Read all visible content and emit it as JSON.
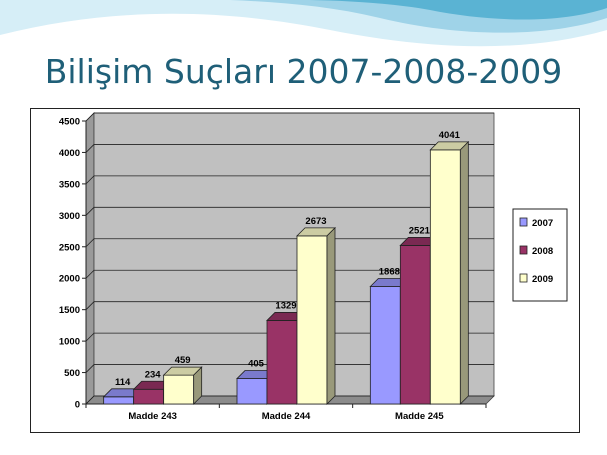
{
  "slide": {
    "title": "Bilişim Suçları 2007-2008-2009"
  },
  "colors": {
    "title": "#1f5f78",
    "series": [
      "#9999ff",
      "#993366",
      "#ffffcc"
    ],
    "plot_bg": "#c0c0c0",
    "wave_light": "#bfe3f0",
    "wave_mid": "#7fc6e0",
    "wave_dark": "#4aa8cc"
  },
  "chart_data": {
    "type": "bar",
    "categories": [
      "Madde 243",
      "Madde 244",
      "Madde 245"
    ],
    "series": [
      {
        "name": "2007",
        "values": [
          114,
          405,
          1868
        ]
      },
      {
        "name": "2008",
        "values": [
          234,
          1329,
          2521
        ]
      },
      {
        "name": "2009",
        "values": [
          459,
          2673,
          4041
        ]
      }
    ],
    "title": "",
    "xlabel": "",
    "ylabel": "",
    "ylim": [
      0,
      4500
    ],
    "yticks": [
      0,
      500,
      1000,
      1500,
      2000,
      2500,
      3000,
      3500,
      4000,
      4500
    ],
    "grid": true,
    "legend": "right",
    "data_labels": true,
    "style": "3d-bar"
  }
}
